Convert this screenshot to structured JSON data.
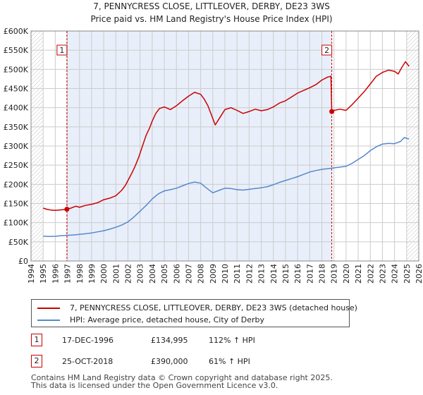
{
  "colors": {
    "property_line": "#cc0000",
    "hpi_line": "#5588cc",
    "grid": "#cccccc",
    "shade": "#e8effa",
    "marker_line": "#cc0000",
    "hatch": "#999999"
  },
  "chart_data": {
    "type": "line",
    "title": "7, PENNYCRESS CLOSE, LITTLEOVER, DERBY, DE23 3WS",
    "subtitle": "Price paid vs. HM Land Registry's House Price Index (HPI)",
    "xlabel": "",
    "ylabel": "",
    "xlim": [
      1994,
      2026
    ],
    "ylim": [
      0,
      600000
    ],
    "grid": true,
    "y_ticks": [
      0,
      50000,
      100000,
      150000,
      200000,
      250000,
      300000,
      350000,
      400000,
      450000,
      500000,
      550000,
      600000
    ],
    "y_tick_labels": [
      "£0",
      "£50K",
      "£100K",
      "£150K",
      "£200K",
      "£250K",
      "£300K",
      "£350K",
      "£400K",
      "£450K",
      "£500K",
      "£550K",
      "£600K"
    ],
    "x_ticks": [
      1994,
      1995,
      1996,
      1997,
      1998,
      1999,
      2000,
      2001,
      2002,
      2003,
      2004,
      2005,
      2006,
      2007,
      2008,
      2009,
      2010,
      2011,
      2012,
      2013,
      2014,
      2015,
      2016,
      2017,
      2018,
      2019,
      2020,
      2021,
      2022,
      2023,
      2024,
      2025,
      2026
    ],
    "x_tick_labels": [
      "1994",
      "1995",
      "1996",
      "1997",
      "1998",
      "1999",
      "2000",
      "2001",
      "2002",
      "2003",
      "2004",
      "2005",
      "2006",
      "2007",
      "2008",
      "2009",
      "2010",
      "2011",
      "2012",
      "2013",
      "2014",
      "2015",
      "2016",
      "2017",
      "2018",
      "2019",
      "2020",
      "2021",
      "2022",
      "2023",
      "2024",
      "2025",
      "2026"
    ],
    "shaded_range": [
      1996.96,
      2018.82
    ],
    "hatched_ranges": [
      [
        1994,
        1995
      ],
      [
        2025.0,
        2026
      ]
    ],
    "markers": [
      {
        "label": "1",
        "x": 1996.96,
        "y": 134995
      },
      {
        "label": "2",
        "x": 2018.82,
        "y": 390000
      }
    ],
    "series": [
      {
        "name": "7, PENNYCRESS CLOSE, LITTLEOVER, DERBY, DE23 3WS (detached house)",
        "color": "#cc0000",
        "points": [
          [
            1995.0,
            138000
          ],
          [
            1995.3,
            135000
          ],
          [
            1995.6,
            133000
          ],
          [
            1996.0,
            132000
          ],
          [
            1996.5,
            133500
          ],
          [
            1996.96,
            134995
          ],
          [
            1997.3,
            138000
          ],
          [
            1997.7,
            143000
          ],
          [
            1998.0,
            140000
          ],
          [
            1998.5,
            145000
          ],
          [
            1999.0,
            148000
          ],
          [
            1999.5,
            152000
          ],
          [
            2000.0,
            160000
          ],
          [
            2000.5,
            164000
          ],
          [
            2001.0,
            170000
          ],
          [
            2001.5,
            185000
          ],
          [
            2001.8,
            198000
          ],
          [
            2002.0,
            210000
          ],
          [
            2002.3,
            228000
          ],
          [
            2002.6,
            248000
          ],
          [
            2002.9,
            272000
          ],
          [
            2003.2,
            300000
          ],
          [
            2003.5,
            328000
          ],
          [
            2003.8,
            348000
          ],
          [
            2004.0,
            365000
          ],
          [
            2004.3,
            385000
          ],
          [
            2004.6,
            398000
          ],
          [
            2005.0,
            402000
          ],
          [
            2005.5,
            395000
          ],
          [
            2006.0,
            405000
          ],
          [
            2006.5,
            418000
          ],
          [
            2007.0,
            430000
          ],
          [
            2007.5,
            440000
          ],
          [
            2008.0,
            435000
          ],
          [
            2008.3,
            422000
          ],
          [
            2008.6,
            405000
          ],
          [
            2008.9,
            380000
          ],
          [
            2009.2,
            355000
          ],
          [
            2009.6,
            375000
          ],
          [
            2010.0,
            395000
          ],
          [
            2010.5,
            400000
          ],
          [
            2011.0,
            393000
          ],
          [
            2011.5,
            385000
          ],
          [
            2012.0,
            390000
          ],
          [
            2012.5,
            396000
          ],
          [
            2013.0,
            392000
          ],
          [
            2013.5,
            395000
          ],
          [
            2014.0,
            402000
          ],
          [
            2014.5,
            412000
          ],
          [
            2015.0,
            418000
          ],
          [
            2015.5,
            428000
          ],
          [
            2016.0,
            438000
          ],
          [
            2016.5,
            445000
          ],
          [
            2017.0,
            452000
          ],
          [
            2017.5,
            460000
          ],
          [
            2018.0,
            472000
          ],
          [
            2018.5,
            480000
          ],
          [
            2018.75,
            482000
          ],
          [
            2018.82,
            390000
          ],
          [
            2019.0,
            393000
          ],
          [
            2019.5,
            396000
          ],
          [
            2020.0,
            393000
          ],
          [
            2020.5,
            408000
          ],
          [
            2021.0,
            425000
          ],
          [
            2021.5,
            442000
          ],
          [
            2022.0,
            462000
          ],
          [
            2022.5,
            482000
          ],
          [
            2023.0,
            492000
          ],
          [
            2023.5,
            498000
          ],
          [
            2024.0,
            495000
          ],
          [
            2024.3,
            488000
          ],
          [
            2024.6,
            505000
          ],
          [
            2024.9,
            520000
          ],
          [
            2025.2,
            508000
          ]
        ]
      },
      {
        "name": "HPI: Average price, detached house, City of Derby",
        "color": "#5588cc",
        "points": [
          [
            1995.0,
            65000
          ],
          [
            1995.5,
            64000
          ],
          [
            1996.0,
            64500
          ],
          [
            1996.5,
            66000
          ],
          [
            1997.0,
            67000
          ],
          [
            1997.5,
            68000
          ],
          [
            1998.0,
            69500
          ],
          [
            1998.5,
            71000
          ],
          [
            1999.0,
            73000
          ],
          [
            1999.5,
            76000
          ],
          [
            2000.0,
            79000
          ],
          [
            2000.5,
            83000
          ],
          [
            2001.0,
            88000
          ],
          [
            2001.5,
            94000
          ],
          [
            2002.0,
            102000
          ],
          [
            2002.5,
            115000
          ],
          [
            2003.0,
            130000
          ],
          [
            2003.5,
            145000
          ],
          [
            2004.0,
            162000
          ],
          [
            2004.5,
            175000
          ],
          [
            2005.0,
            183000
          ],
          [
            2005.5,
            186000
          ],
          [
            2006.0,
            190000
          ],
          [
            2006.5,
            196000
          ],
          [
            2007.0,
            202000
          ],
          [
            2007.5,
            206000
          ],
          [
            2008.0,
            203000
          ],
          [
            2008.5,
            190000
          ],
          [
            2009.0,
            178000
          ],
          [
            2009.5,
            184000
          ],
          [
            2010.0,
            190000
          ],
          [
            2010.5,
            189000
          ],
          [
            2011.0,
            186000
          ],
          [
            2011.5,
            185000
          ],
          [
            2012.0,
            187000
          ],
          [
            2012.5,
            189000
          ],
          [
            2013.0,
            191000
          ],
          [
            2013.5,
            194000
          ],
          [
            2014.0,
            199000
          ],
          [
            2014.5,
            205000
          ],
          [
            2015.0,
            210000
          ],
          [
            2015.5,
            215000
          ],
          [
            2016.0,
            220000
          ],
          [
            2016.5,
            226000
          ],
          [
            2017.0,
            232000
          ],
          [
            2017.5,
            236000
          ],
          [
            2018.0,
            239000
          ],
          [
            2018.5,
            241000
          ],
          [
            2019.0,
            243000
          ],
          [
            2019.5,
            245000
          ],
          [
            2020.0,
            247000
          ],
          [
            2020.5,
            255000
          ],
          [
            2021.0,
            265000
          ],
          [
            2021.5,
            275000
          ],
          [
            2022.0,
            288000
          ],
          [
            2022.5,
            298000
          ],
          [
            2023.0,
            305000
          ],
          [
            2023.5,
            307000
          ],
          [
            2024.0,
            306000
          ],
          [
            2024.5,
            312000
          ],
          [
            2024.8,
            322000
          ],
          [
            2025.2,
            318000
          ]
        ]
      }
    ]
  },
  "legend": {
    "property_label": "7, PENNYCRESS CLOSE, LITTLEOVER, DERBY, DE23 3WS (detached house)",
    "hpi_label": "HPI: Average price, detached house, City of Derby"
  },
  "sales": [
    {
      "num": "1",
      "date": "17-DEC-1996",
      "price": "£134,995",
      "hpi": "112% ↑ HPI"
    },
    {
      "num": "2",
      "date": "25-OCT-2018",
      "price": "£390,000",
      "hpi": "61% ↑ HPI"
    }
  ],
  "footer": {
    "line1": "Contains HM Land Registry data © Crown copyright and database right 2025.",
    "line2": "This data is licensed under the Open Government Licence v3.0."
  }
}
